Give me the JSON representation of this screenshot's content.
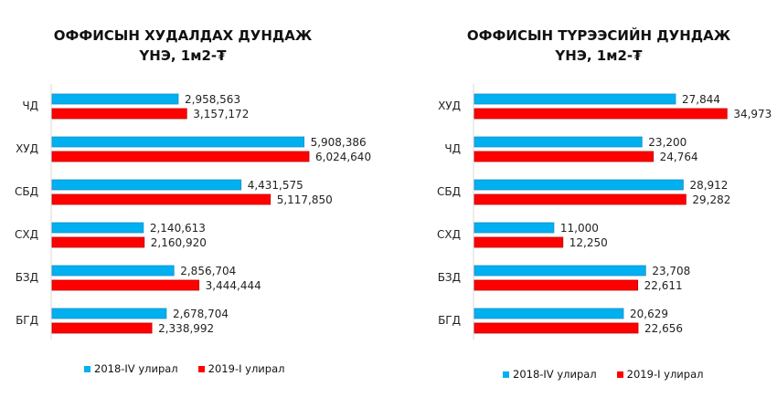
{
  "colors": {
    "s2018": "#00b0f0",
    "s2019": "#ff0000"
  },
  "chart_data": [
    {
      "type": "bar",
      "orientation": "horizontal",
      "title": "ОФФИСЫН ХУДАЛДАХ ДУНДАЖ",
      "subtitle": "ҮНЭ, 1м2-₮",
      "categories": [
        "ЧД",
        "ХУД",
        "СБД",
        "СХД",
        "БЗД",
        "БГД"
      ],
      "series": [
        {
          "name": "2018-IV улирал",
          "values": [
            2958563,
            5908386,
            4431575,
            2140613,
            2856704,
            2678704
          ],
          "labels": [
            "2,958,563",
            "5,908,386",
            "4,431,575",
            "2,140,613",
            "2,856,704",
            "2,678,704"
          ]
        },
        {
          "name": "2019-I улирал",
          "values": [
            3157172,
            6024640,
            5117850,
            2160920,
            3444444,
            2338992
          ],
          "labels": [
            "3,157,172",
            "6,024,640",
            "5,117,850",
            "2,160,920",
            "3,444,444",
            "2,338,992"
          ]
        }
      ],
      "legend": "bottom"
    },
    {
      "type": "bar",
      "orientation": "horizontal",
      "title": "ОФФИСЫН  ТҮРЭЭСИЙН ДУНДАЖ",
      "subtitle": "ҮНЭ, 1м2-₮",
      "categories": [
        "ХУД",
        "ЧД",
        "СБД",
        "СХД",
        "БЗД",
        "БГД"
      ],
      "series": [
        {
          "name": "2018-IV улирал",
          "values": [
            27844,
            23200,
            28912,
            11000,
            23708,
            20629
          ],
          "labels": [
            "27,844",
            "23,200",
            "28,912",
            "11,000",
            "23,708",
            "20,629"
          ]
        },
        {
          "name": "2019-I улирал",
          "values": [
            34973,
            24764,
            29282,
            12250,
            22611,
            22656
          ],
          "labels": [
            "34,973",
            "24,764",
            "29,282",
            "12,250",
            "22,611",
            "22,656"
          ]
        }
      ],
      "legend": "bottom"
    }
  ]
}
